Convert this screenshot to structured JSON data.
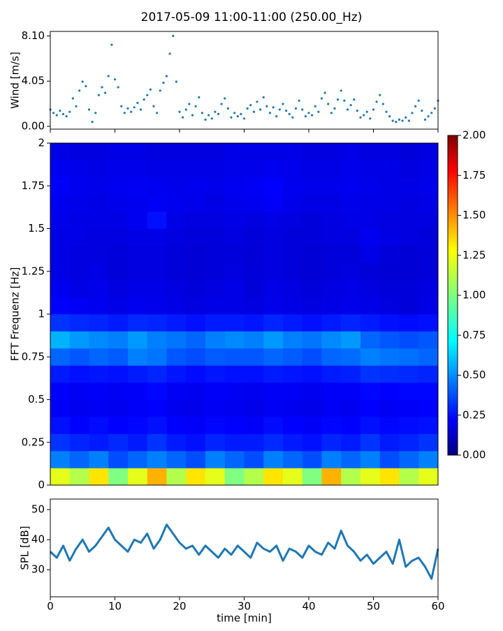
{
  "title": "2017-05-09 11:00-11:00 (250.00_Hz)",
  "chart_data": [
    {
      "type": "scatter",
      "ylabel": "Wind [m/s]",
      "color": "#1f77b4",
      "xlim": [
        0,
        60
      ],
      "ylim": [
        -0.25,
        8.5
      ],
      "xticks": [
        0,
        10,
        20,
        30,
        40,
        50,
        60
      ],
      "show_xtick_labels": false,
      "yticks": [
        {
          "value": 0,
          "label": "0.00"
        },
        {
          "value": 4.05,
          "label": "4.05"
        },
        {
          "value": 8.1,
          "label": "8.10"
        }
      ],
      "x": [
        0,
        0.5,
        1,
        1.5,
        2,
        2.5,
        3,
        3.5,
        4,
        4.5,
        5,
        5.5,
        6,
        6.5,
        7,
        7.5,
        8,
        8.5,
        9,
        9.5,
        10,
        10.5,
        11,
        11.5,
        12,
        12.5,
        13,
        13.5,
        14,
        14.5,
        15,
        15.5,
        16,
        16.5,
        17,
        17.5,
        18,
        18.5,
        19,
        19.5,
        20,
        20.5,
        21,
        21.5,
        22,
        22.5,
        23,
        23.5,
        24,
        24.5,
        25,
        25.5,
        26,
        26.5,
        27,
        27.5,
        28,
        28.5,
        29,
        29.5,
        30,
        30.5,
        31,
        31.5,
        32,
        32.5,
        33,
        33.5,
        34,
        34.5,
        35,
        35.5,
        36,
        36.5,
        37,
        37.5,
        38,
        38.5,
        39,
        39.5,
        40,
        40.5,
        41,
        41.5,
        42,
        42.5,
        43,
        43.5,
        44,
        44.5,
        45,
        45.5,
        46,
        46.5,
        47,
        47.5,
        48,
        48.5,
        49,
        49.5,
        50,
        50.5,
        51,
        51.5,
        52,
        52.5,
        53,
        53.5,
        54,
        54.5,
        55,
        55.5,
        56,
        56.5,
        57,
        57.5,
        58,
        58.5,
        59,
        59.5,
        60
      ],
      "values": [
        1.5,
        1.2,
        1.0,
        1.4,
        1.1,
        0.9,
        1.3,
        2.5,
        1.8,
        3.2,
        4.0,
        3.6,
        1.5,
        0.4,
        1.2,
        2.8,
        3.5,
        3.0,
        4.5,
        7.3,
        4.2,
        3.5,
        1.8,
        1.2,
        1.6,
        1.3,
        1.7,
        2.1,
        1.5,
        2.4,
        2.8,
        3.3,
        1.8,
        1.2,
        3.2,
        3.9,
        4.5,
        6.5,
        8.1,
        4.0,
        1.3,
        0.8,
        1.5,
        2.0,
        1.0,
        1.8,
        2.6,
        1.2,
        0.6,
        1.0,
        0.7,
        1.3,
        1.1,
        2.0,
        2.5,
        1.6,
        0.8,
        1.2,
        0.9,
        1.1,
        0.7,
        1.6,
        1.9,
        1.3,
        2.2,
        1.5,
        2.6,
        1.8,
        1.2,
        1.7,
        0.9,
        1.5,
        2.0,
        1.4,
        1.1,
        0.8,
        1.6,
        2.3,
        1.5,
        0.9,
        1.2,
        1.0,
        1.8,
        1.3,
        2.5,
        3.0,
        2.0,
        1.2,
        1.6,
        2.4,
        3.2,
        2.3,
        1.5,
        1.9,
        2.4,
        1.4,
        0.8,
        1.0,
        1.3,
        0.7,
        1.5,
        2.2,
        2.8,
        2.0,
        1.3,
        0.9,
        0.5,
        0.4,
        0.6,
        0.5,
        0.8,
        0.5,
        1.2,
        1.8,
        2.3,
        1.4,
        0.6,
        0.9,
        1.2,
        1.6,
        2.3
      ]
    },
    {
      "type": "heatmap",
      "ylabel": "FFT Frequenz [Hz]",
      "colormap": "jet",
      "xlim": [
        0,
        60
      ],
      "ylim": [
        0,
        2
      ],
      "yticks": [
        0,
        0.25,
        0.5,
        0.75,
        1,
        1.25,
        1.5,
        1.75,
        2
      ],
      "x_bins": [
        0,
        3,
        6,
        9,
        12,
        15,
        18,
        21,
        24,
        27,
        30,
        33,
        36,
        39,
        42,
        45,
        48,
        51,
        54,
        57,
        60
      ],
      "y_bins": [
        0,
        0.1,
        0.2,
        0.3,
        0.4,
        0.5,
        0.6,
        0.7,
        0.8,
        0.9,
        1,
        1.1,
        1.2,
        1.3,
        1.4,
        1.5,
        1.6,
        1.7,
        1.8,
        1.9,
        2
      ],
      "clim": [
        0,
        2
      ],
      "cticks": [
        {
          "value": 0,
          "label": "0.00"
        },
        {
          "value": 0.25,
          "label": "0.25"
        },
        {
          "value": 0.5,
          "label": "0.50"
        },
        {
          "value": 0.75,
          "label": "0.75"
        },
        {
          "value": 1,
          "label": "1.00"
        },
        {
          "value": 1.25,
          "label": "1.25"
        },
        {
          "value": 1.5,
          "label": "1.50"
        },
        {
          "value": 1.75,
          "label": "1.75"
        },
        {
          "value": 2,
          "label": "2.00"
        }
      ],
      "values": [
        [
          1.2,
          1.1,
          1.3,
          1.0,
          1.2,
          1.4,
          1.1,
          1.3,
          1.2,
          1.0,
          1.1,
          1.3,
          1.2,
          1.0,
          1.4,
          1.1,
          1.2,
          1.3,
          1.1,
          1.2
        ],
        [
          0.5,
          0.45,
          0.5,
          0.4,
          0.45,
          0.5,
          0.45,
          0.4,
          0.5,
          0.45,
          0.4,
          0.5,
          0.45,
          0.4,
          0.5,
          0.45,
          0.5,
          0.4,
          0.45,
          0.5
        ],
        [
          0.35,
          0.32,
          0.3,
          0.33,
          0.3,
          0.35,
          0.3,
          0.28,
          0.32,
          0.3,
          0.3,
          0.33,
          0.3,
          0.28,
          0.32,
          0.3,
          0.35,
          0.3,
          0.32,
          0.35
        ],
        [
          0.28,
          0.25,
          0.27,
          0.25,
          0.26,
          0.28,
          0.25,
          0.24,
          0.26,
          0.25,
          0.24,
          0.27,
          0.25,
          0.24,
          0.26,
          0.25,
          0.28,
          0.26,
          0.27,
          0.28
        ],
        [
          0.24,
          0.22,
          0.23,
          0.22,
          0.24,
          0.25,
          0.22,
          0.21,
          0.23,
          0.22,
          0.21,
          0.23,
          0.22,
          0.21,
          0.23,
          0.22,
          0.25,
          0.23,
          0.24,
          0.25
        ],
        [
          0.25,
          0.23,
          0.24,
          0.23,
          0.24,
          0.26,
          0.23,
          0.22,
          0.24,
          0.23,
          0.22,
          0.24,
          0.23,
          0.22,
          0.24,
          0.24,
          0.26,
          0.25,
          0.26,
          0.26
        ],
        [
          0.3,
          0.28,
          0.29,
          0.28,
          0.3,
          0.32,
          0.29,
          0.27,
          0.29,
          0.28,
          0.28,
          0.3,
          0.29,
          0.28,
          0.3,
          0.31,
          0.35,
          0.34,
          0.33,
          0.32
        ],
        [
          0.45,
          0.42,
          0.45,
          0.43,
          0.5,
          0.48,
          0.42,
          0.4,
          0.43,
          0.42,
          0.42,
          0.45,
          0.43,
          0.4,
          0.45,
          0.46,
          0.5,
          0.48,
          0.47,
          0.45
        ],
        [
          0.6,
          0.55,
          0.52,
          0.5,
          0.55,
          0.5,
          0.48,
          0.45,
          0.5,
          0.52,
          0.5,
          0.55,
          0.5,
          0.48,
          0.52,
          0.55,
          0.45,
          0.42,
          0.4,
          0.42
        ],
        [
          0.35,
          0.33,
          0.32,
          0.3,
          0.33,
          0.32,
          0.3,
          0.28,
          0.3,
          0.3,
          0.29,
          0.32,
          0.3,
          0.28,
          0.3,
          0.32,
          0.3,
          0.28,
          0.27,
          0.28
        ],
        [
          0.25,
          0.23,
          0.22,
          0.2,
          0.22,
          0.21,
          0.2,
          0.19,
          0.2,
          0.2,
          0.19,
          0.21,
          0.2,
          0.19,
          0.2,
          0.21,
          0.2,
          0.19,
          0.18,
          0.2
        ],
        [
          0.22,
          0.2,
          0.21,
          0.19,
          0.2,
          0.2,
          0.19,
          0.18,
          0.19,
          0.2,
          0.18,
          0.2,
          0.19,
          0.18,
          0.19,
          0.2,
          0.19,
          0.18,
          0.18,
          0.19
        ],
        [
          0.2,
          0.19,
          0.2,
          0.18,
          0.19,
          0.19,
          0.18,
          0.17,
          0.18,
          0.19,
          0.18,
          0.19,
          0.18,
          0.17,
          0.18,
          0.19,
          0.18,
          0.17,
          0.17,
          0.18
        ],
        [
          0.2,
          0.19,
          0.19,
          0.18,
          0.19,
          0.19,
          0.18,
          0.17,
          0.18,
          0.18,
          0.17,
          0.19,
          0.18,
          0.17,
          0.18,
          0.18,
          0.2,
          0.18,
          0.17,
          0.18
        ],
        [
          0.2,
          0.2,
          0.19,
          0.19,
          0.2,
          0.2,
          0.19,
          0.18,
          0.18,
          0.19,
          0.18,
          0.19,
          0.18,
          0.18,
          0.19,
          0.19,
          0.22,
          0.2,
          0.19,
          0.18
        ],
        [
          0.21,
          0.2,
          0.2,
          0.2,
          0.22,
          0.28,
          0.2,
          0.19,
          0.19,
          0.2,
          0.19,
          0.2,
          0.19,
          0.18,
          0.19,
          0.2,
          0.2,
          0.19,
          0.19,
          0.19
        ],
        [
          0.22,
          0.21,
          0.2,
          0.21,
          0.22,
          0.23,
          0.22,
          0.21,
          0.2,
          0.21,
          0.22,
          0.24,
          0.21,
          0.2,
          0.2,
          0.21,
          0.2,
          0.2,
          0.19,
          0.2
        ],
        [
          0.24,
          0.22,
          0.21,
          0.22,
          0.23,
          0.22,
          0.21,
          0.22,
          0.21,
          0.22,
          0.23,
          0.25,
          0.22,
          0.21,
          0.21,
          0.22,
          0.21,
          0.2,
          0.2,
          0.21
        ],
        [
          0.22,
          0.21,
          0.2,
          0.21,
          0.21,
          0.2,
          0.2,
          0.2,
          0.2,
          0.21,
          0.21,
          0.22,
          0.21,
          0.2,
          0.2,
          0.21,
          0.2,
          0.2,
          0.19,
          0.2
        ],
        [
          0.2,
          0.19,
          0.19,
          0.2,
          0.2,
          0.19,
          0.19,
          0.19,
          0.19,
          0.2,
          0.2,
          0.2,
          0.2,
          0.19,
          0.19,
          0.2,
          0.19,
          0.19,
          0.18,
          0.19
        ]
      ]
    },
    {
      "type": "line",
      "ylabel": "SPL [dB]",
      "xlabel": "time [min]",
      "color": "#1f77b4",
      "xlim": [
        0,
        60
      ],
      "ylim": [
        21,
        53.5
      ],
      "xticks": [
        0,
        10,
        20,
        30,
        40,
        50,
        60
      ],
      "show_xtick_labels": true,
      "yticks": [
        30,
        40,
        50
      ],
      "x": [
        0,
        1,
        2,
        3,
        4,
        5,
        6,
        7,
        8,
        9,
        10,
        11,
        12,
        13,
        14,
        15,
        16,
        17,
        18,
        19,
        20,
        21,
        22,
        23,
        24,
        25,
        26,
        27,
        28,
        29,
        30,
        31,
        32,
        33,
        34,
        35,
        36,
        37,
        38,
        39,
        40,
        41,
        42,
        43,
        44,
        45,
        46,
        47,
        48,
        49,
        50,
        51,
        52,
        53,
        54,
        55,
        56,
        57,
        58,
        59,
        60
      ],
      "values": [
        36,
        34,
        38,
        33,
        37,
        40,
        36,
        38,
        41,
        44,
        40,
        38,
        36,
        40,
        39,
        42,
        37,
        40,
        45,
        42,
        39,
        37,
        38,
        35,
        38,
        36,
        34,
        37,
        35,
        38,
        36,
        34,
        39,
        37,
        36,
        38,
        33,
        37,
        36,
        34,
        38,
        36,
        35,
        39,
        37,
        43,
        38,
        36,
        33,
        35,
        32,
        34,
        36,
        32,
        40,
        31,
        33,
        34,
        31,
        27,
        37
      ]
    }
  ]
}
